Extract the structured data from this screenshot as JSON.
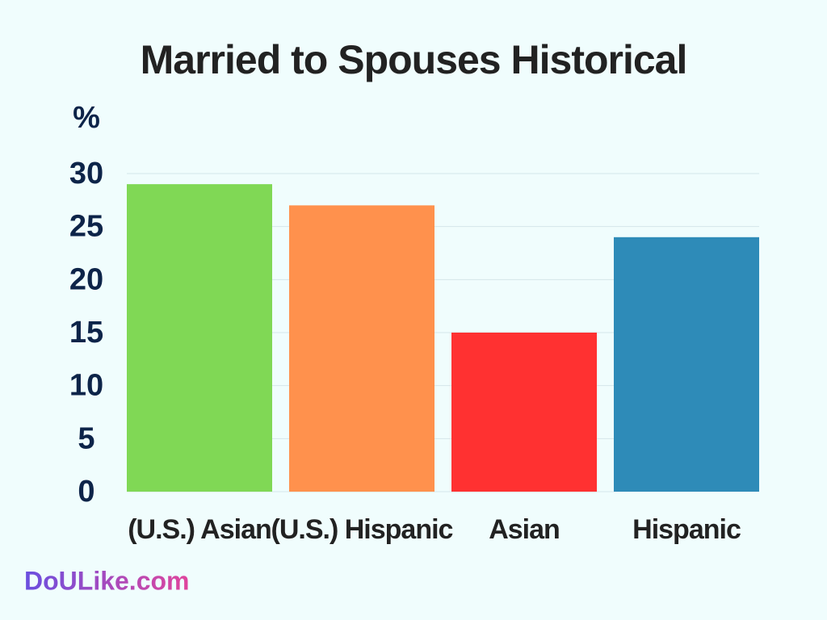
{
  "chart_data": {
    "type": "bar",
    "title": "Married to Spouses Historical",
    "y_label": "%",
    "categories": [
      "(U.S.) Asian",
      "(U.S.) Hispanic",
      "Asian",
      "Hispanic"
    ],
    "values": [
      29,
      27,
      15,
      24
    ],
    "colors": [
      "#80d855",
      "#ff914d",
      "#ff3131",
      "#2e8bb8"
    ],
    "ylim": [
      0,
      30
    ],
    "yticks": [
      0,
      5,
      10,
      15,
      20,
      25,
      30
    ],
    "grid": true
  },
  "watermark": "DoULike.com"
}
